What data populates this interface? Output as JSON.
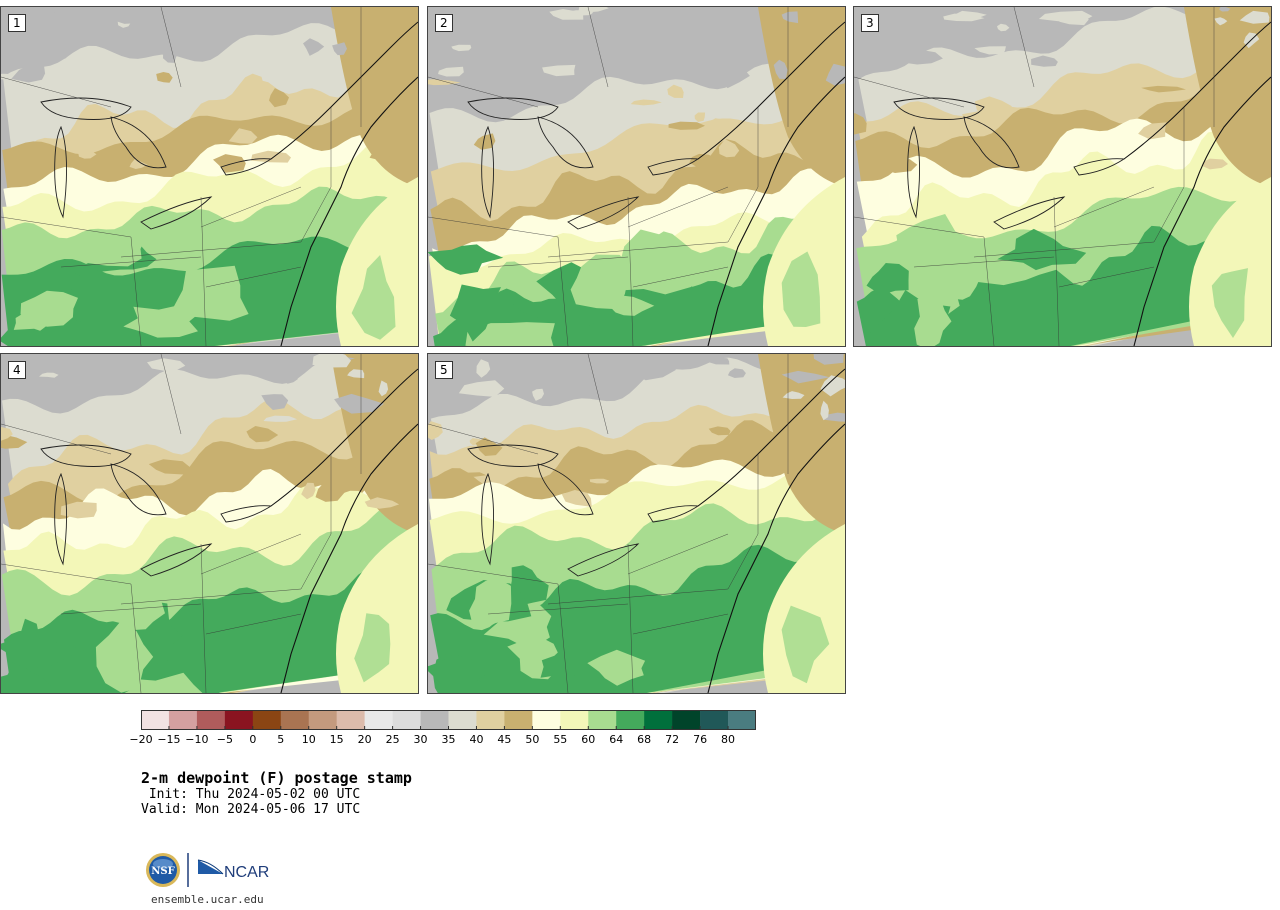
{
  "panels": [
    {
      "label": "1",
      "variant": 1
    },
    {
      "label": "2",
      "variant": 2
    },
    {
      "label": "3",
      "variant": 3
    },
    {
      "label": "4",
      "variant": 4
    },
    {
      "label": "5",
      "variant": 5
    }
  ],
  "colorbar": {
    "colors": [
      "#f2e2e2",
      "#d4a0a0",
      "#b05c5c",
      "#8a1420",
      "#8b4513",
      "#a97452",
      "#c49a7e",
      "#dcbbab",
      "#e8e8e8",
      "#dcdcdc",
      "#b8b8b8",
      "#dcdcd0",
      "#e0d0a0",
      "#c8b070",
      "#fefee0",
      "#f3f7b8",
      "#a8dc90",
      "#44aa5c",
      "#00703c",
      "#00442a",
      "#205858",
      "#4a7c80"
    ],
    "tick_labels": [
      "−20",
      "−15",
      "−10",
      "−5",
      "0",
      "5",
      "10",
      "15",
      "20",
      "25",
      "30",
      "35",
      "40",
      "45",
      "50",
      "55",
      "60",
      "64",
      "68",
      "72",
      "76",
      "80"
    ]
  },
  "title": "2-m dewpoint (F) postage stamp",
  "init_line": " Init: Thu 2024-05-02 00 UTC",
  "valid_line": "Valid: Mon 2024-05-06 17 UTC",
  "logo": {
    "nsf_text": "NSF",
    "ncar_text": "NCAR"
  },
  "site": "ensemble.ucar.edu"
}
